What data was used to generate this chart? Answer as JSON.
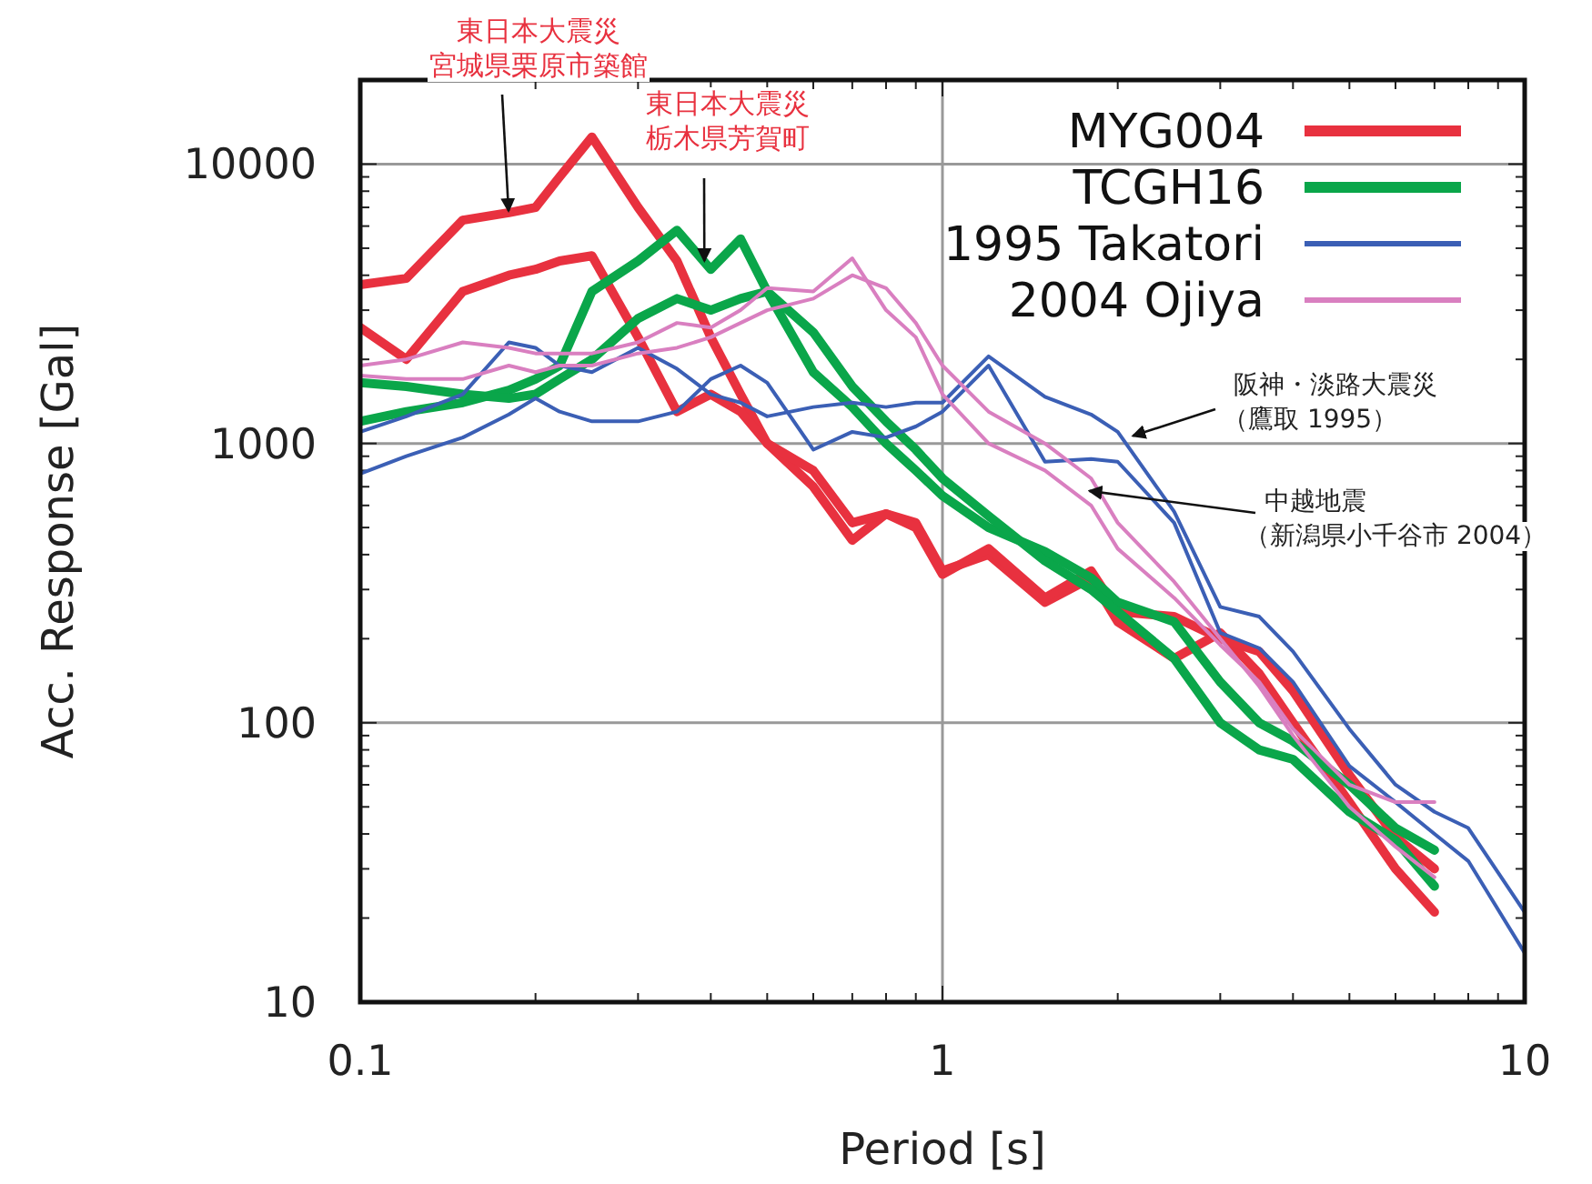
{
  "chart_data": {
    "type": "line",
    "log": "xy",
    "xlim": [
      0.1,
      10
    ],
    "ylim": [
      10,
      20000
    ],
    "xticks": [
      0.1,
      1,
      10
    ],
    "yticks": [
      10,
      100,
      1000,
      10000
    ],
    "xlabel": "Period [s]",
    "ylabel": "Acc. Response [Gal]",
    "grid": true,
    "legend": "top right",
    "line_style": "solid",
    "x": [
      0.1,
      0.12,
      0.15,
      0.18,
      0.2,
      0.22,
      0.25,
      0.3,
      0.35,
      0.4,
      0.45,
      0.5,
      0.6,
      0.7,
      0.8,
      0.9,
      1,
      1.2,
      1.5,
      1.8,
      2,
      2.5,
      3,
      3.5,
      4,
      5,
      6,
      7
    ],
    "series": [
      {
        "name": "MYG004",
        "color": "#e8313f",
        "values": [
          3700,
          3900,
          6300,
          6700,
          7000,
          9000,
          12500,
          7000,
          4500,
          2400,
          1500,
          1000,
          700,
          450,
          560,
          520,
          350,
          400,
          270,
          330,
          230,
          170,
          210,
          150,
          100,
          52,
          30,
          21
        ]
      },
      {
        "color": "#e8313f",
        "values": [
          2600,
          2000,
          3500,
          4000,
          4200,
          4500,
          4700,
          2400,
          1300,
          1500,
          1300,
          1000,
          800,
          520,
          560,
          500,
          340,
          420,
          280,
          350,
          250,
          240,
          200,
          180,
          130,
          65,
          39,
          30
        ]
      },
      {
        "name": "TCGH16",
        "color": "#0aa64a",
        "values": [
          1200,
          1300,
          1400,
          1550,
          1700,
          1900,
          3500,
          4500,
          5800,
          4200,
          5400,
          3500,
          1800,
          1350,
          1000,
          800,
          650,
          500,
          410,
          330,
          270,
          230,
          140,
          100,
          86,
          60,
          42,
          35
        ]
      },
      {
        "color": "#0aa64a",
        "values": [
          1650,
          1600,
          1500,
          1450,
          1500,
          1700,
          2000,
          2800,
          3300,
          3000,
          3300,
          3500,
          2500,
          1600,
          1200,
          950,
          750,
          550,
          380,
          300,
          250,
          170,
          100,
          80,
          74,
          48,
          38,
          26
        ]
      },
      {
        "name": "1995 Takatori",
        "color": "#3b5fb5",
        "x": [
          0.1,
          0.12,
          0.15,
          0.18,
          0.2,
          0.22,
          0.25,
          0.3,
          0.35,
          0.4,
          0.45,
          0.5,
          0.6,
          0.7,
          0.8,
          0.9,
          1,
          1.2,
          1.5,
          1.8,
          2,
          2.5,
          3,
          3.5,
          4,
          5,
          6,
          7,
          8,
          10
        ],
        "values": [
          1100,
          1250,
          1500,
          2300,
          2200,
          1900,
          1800,
          2200,
          1850,
          1500,
          1400,
          1250,
          1350,
          1400,
          1350,
          1400,
          1400,
          2050,
          1470,
          1270,
          1100,
          570,
          260,
          240,
          180,
          95,
          60,
          48,
          42,
          21
        ]
      },
      {
        "color": "#3b5fb5",
        "x": [
          0.1,
          0.12,
          0.15,
          0.18,
          0.2,
          0.22,
          0.25,
          0.3,
          0.35,
          0.4,
          0.45,
          0.5,
          0.6,
          0.7,
          0.8,
          0.9,
          1,
          1.2,
          1.5,
          1.8,
          2,
          2.5,
          3,
          3.5,
          4,
          5,
          6,
          7,
          8,
          10
        ],
        "values": [
          780,
          900,
          1050,
          1270,
          1450,
          1300,
          1200,
          1200,
          1300,
          1700,
          1900,
          1650,
          950,
          1100,
          1050,
          1150,
          1300,
          1900,
          860,
          880,
          860,
          520,
          210,
          185,
          140,
          70,
          52,
          40,
          32,
          15
        ]
      },
      {
        "name": "2004 Ojiya",
        "color": "#d97fc0",
        "values": [
          1900,
          2000,
          2300,
          2200,
          2100,
          2100,
          2100,
          2300,
          2700,
          2600,
          3000,
          3600,
          3500,
          4600,
          3000,
          2400,
          1500,
          1000,
          800,
          600,
          420,
          280,
          190,
          140,
          95,
          60,
          52,
          52
        ]
      },
      {
        "color": "#d97fc0",
        "values": [
          1750,
          1700,
          1700,
          1900,
          1800,
          1900,
          1900,
          2100,
          2200,
          2400,
          2700,
          3000,
          3300,
          4000,
          3600,
          2700,
          1900,
          1300,
          1000,
          750,
          520,
          320,
          200,
          135,
          90,
          50,
          36,
          28
        ]
      }
    ],
    "annotations": [
      "東日本大震災",
      {
        "text": "宮城県栗原市築館",
        "x": 0.18,
        "y": 6500
      },
      "東日本大震災",
      {
        "text": "栃木県芳賀町",
        "x": 0.39,
        "y": 4300
      },
      "阪神・淡路大震災",
      {
        "text": "（鷹取 1995）",
        "x": 2.08,
        "y": 1050
      },
      "中越地震",
      {
        "text": "（新潟県小千谷市 2004）",
        "x": 1.75,
        "y": 680
      }
    ]
  }
}
